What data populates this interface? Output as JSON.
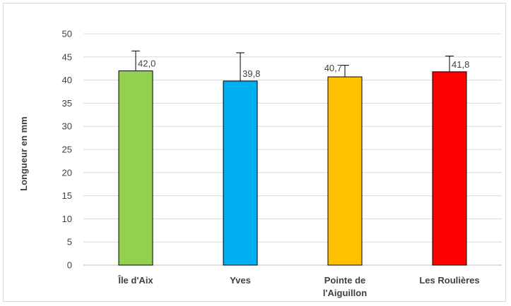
{
  "chart_data": {
    "type": "bar",
    "title": "",
    "xlabel": "",
    "ylabel": "Longueur en mm",
    "ylim": [
      0,
      50
    ],
    "ytick_step": 5,
    "grid": true,
    "legend": "none",
    "categories": [
      "Île d'Aix",
      "Yves",
      "Pointe de l'Aiguillon",
      "Les Roulières"
    ],
    "category_lines": [
      [
        "Île d'Aix"
      ],
      [
        "Yves"
      ],
      [
        "Pointe de",
        "l'Aiguillon"
      ],
      [
        "Les Roulières"
      ]
    ],
    "values": [
      42.0,
      39.8,
      40.7,
      41.8
    ],
    "data_labels": [
      "42,0",
      "39,8",
      "40,7",
      "41,8"
    ],
    "error_plus": [
      4.3,
      6.1,
      2.5,
      3.4
    ],
    "colors": [
      "#92d050",
      "#00b0f0",
      "#ffc000",
      "#ff0000"
    ]
  }
}
